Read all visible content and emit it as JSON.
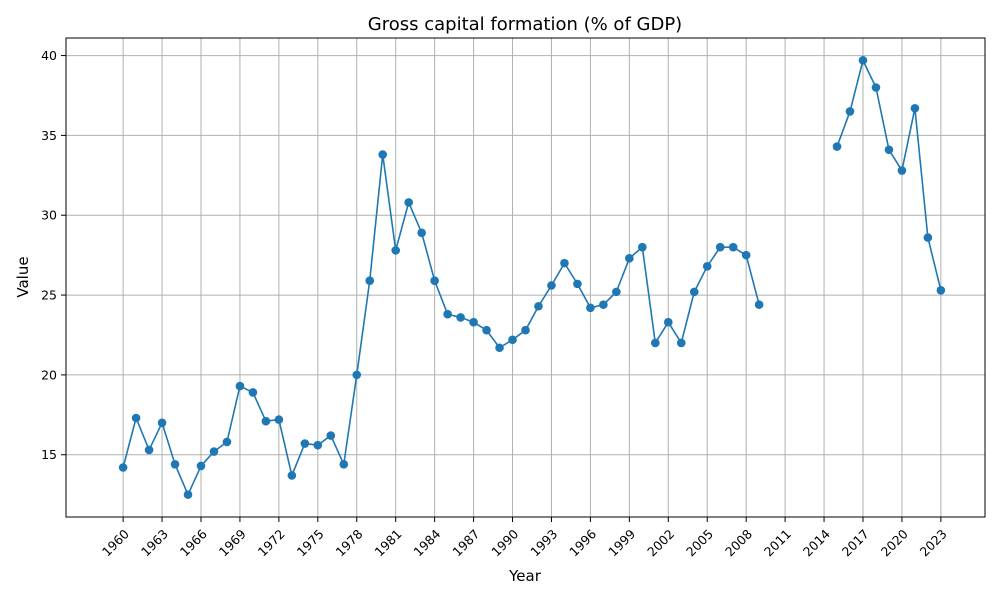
{
  "chart_data": {
    "type": "line",
    "title": "Gross capital formation (% of GDP)",
    "xlabel": "Year",
    "ylabel": "Value",
    "xlim": [
      1955.6,
      2026.4
    ],
    "ylim": [
      11.1,
      41.1
    ],
    "xticks": [
      1960,
      1963,
      1966,
      1969,
      1972,
      1975,
      1978,
      1981,
      1984,
      1987,
      1990,
      1993,
      1996,
      1999,
      2002,
      2005,
      2008,
      2011,
      2014,
      2017,
      2020,
      2023
    ],
    "yticks": [
      15,
      20,
      25,
      30,
      35,
      40
    ],
    "grid": true,
    "line_color": "#1f77b4",
    "series": [
      {
        "name": "",
        "x": [
          1960,
          1961,
          1962,
          1963,
          1964,
          1965,
          1966,
          1967,
          1968,
          1969,
          1970,
          1971,
          1972,
          1973,
          1974,
          1975,
          1976,
          1977,
          1978,
          1979,
          1980,
          1981,
          1982,
          1983,
          1984,
          1985,
          1986,
          1987,
          1988,
          1989,
          1990,
          1991,
          1992,
          1993,
          1994,
          1995,
          1996,
          1997,
          1998,
          1999,
          2000,
          2001,
          2002,
          2003,
          2004,
          2005,
          2006,
          2007,
          2008,
          2009,
          2010,
          2011,
          2012,
          2013,
          2014,
          2015,
          2016,
          2017,
          2018,
          2019,
          2020,
          2021,
          2022,
          2023
        ],
        "values": [
          14.2,
          17.3,
          15.3,
          17.0,
          14.4,
          12.5,
          14.3,
          15.2,
          15.8,
          19.3,
          18.9,
          17.1,
          17.2,
          13.7,
          15.7,
          15.6,
          16.2,
          14.4,
          20.0,
          25.9,
          33.8,
          27.8,
          30.8,
          28.9,
          25.9,
          23.8,
          23.6,
          23.3,
          22.8,
          21.7,
          22.2,
          22.8,
          24.3,
          25.6,
          27.0,
          25.7,
          24.2,
          24.4,
          25.2,
          27.3,
          28.0,
          22.0,
          23.3,
          22.0,
          25.2,
          26.8,
          28.0,
          28.0,
          27.5,
          24.4,
          null,
          null,
          null,
          null,
          null,
          34.3,
          36.5,
          39.7,
          38.0,
          34.1,
          32.8,
          36.7,
          28.6,
          25.3
        ]
      }
    ]
  }
}
